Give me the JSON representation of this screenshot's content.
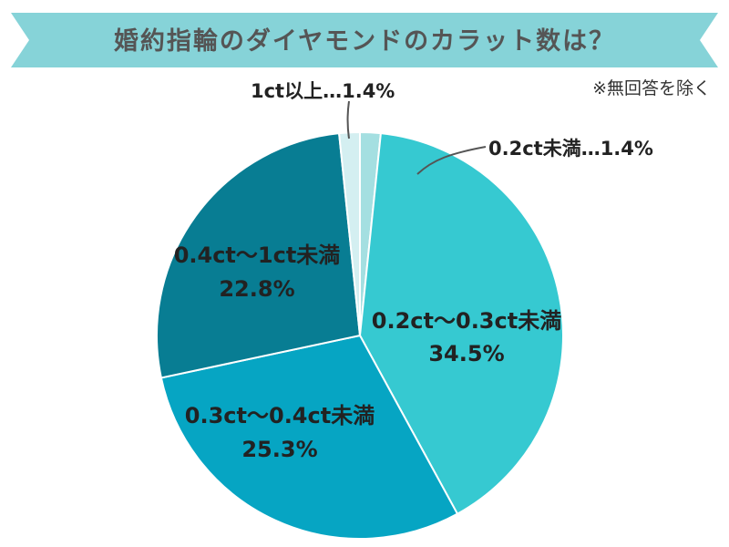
{
  "chart_data": {
    "type": "pie",
    "title": "婚約指輪のダイヤモンドのカラット数は？",
    "note": "※無回答を除く",
    "colors": {
      "title_band": "#86d3d8",
      "slice_border": "#ffffff",
      "leader_line": "#555555"
    },
    "start": "12 o'clock",
    "direction": "clockwise",
    "slices": [
      {
        "category": "0.2ct未満",
        "value_label": "1.4%",
        "value": 1.4,
        "color": "#a4dfe1",
        "label_style": "external",
        "label_text": "0.2ct未満…1.4%"
      },
      {
        "category": "0.2ct〜0.3ct未満",
        "value_label": "34.5%",
        "value": 34.5,
        "color": "#36c9d1",
        "label_style": "internal"
      },
      {
        "category": "0.3ct〜0.4ct未満",
        "value_label": "25.3%",
        "value": 25.3,
        "color": "#06a5c3",
        "label_style": "internal"
      },
      {
        "category": "0.4ct〜1ct未満",
        "value_label": "22.8%",
        "value": 22.8,
        "color": "#087d93",
        "label_style": "internal"
      },
      {
        "category": "1ct以上",
        "value_label": "1.4%",
        "value": 1.4,
        "color": "#d4eff1",
        "label_style": "external",
        "label_text": "1ct以上…1.4%"
      }
    ]
  }
}
